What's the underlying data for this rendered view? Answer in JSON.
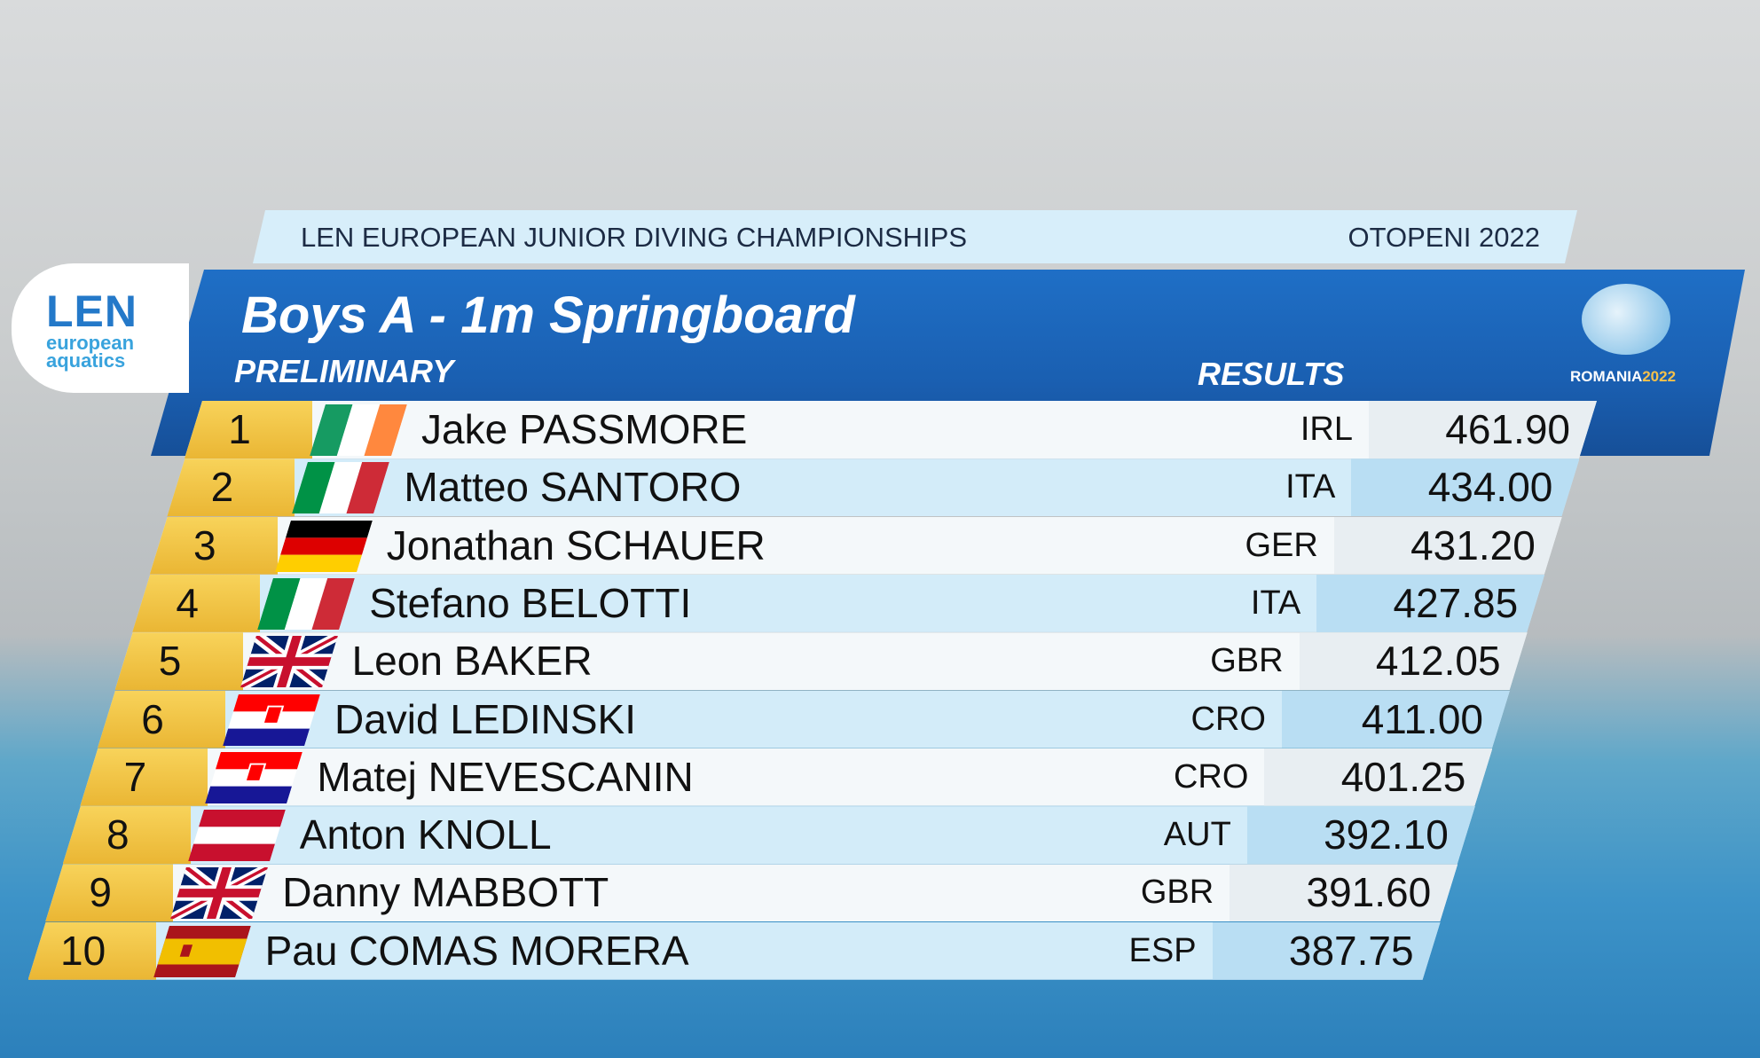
{
  "header": {
    "event": "LEN EUROPEAN JUNIOR DIVING CHAMPIONSHIPS",
    "venue": "OTOPENI 2022"
  },
  "logo_left": {
    "mark": "LEN",
    "line1": "european",
    "line2": "aquatics"
  },
  "logo_right": {
    "country": "ROMANIA",
    "year": "2022"
  },
  "title": "Boys A - 1m Springboard",
  "phase": "PRELIMINARY",
  "results_label": "RESULTS",
  "table": {
    "rows": [
      {
        "rank": 1,
        "name": "Jake PASSMORE",
        "nation": "IRL",
        "score": "461.90"
      },
      {
        "rank": 2,
        "name": "Matteo SANTORO",
        "nation": "ITA",
        "score": "434.00"
      },
      {
        "rank": 3,
        "name": "Jonathan SCHAUER",
        "nation": "GER",
        "score": "431.20"
      },
      {
        "rank": 4,
        "name": "Stefano BELOTTI",
        "nation": "ITA",
        "score": "427.85"
      },
      {
        "rank": 5,
        "name": "Leon BAKER",
        "nation": "GBR",
        "score": "412.05"
      },
      {
        "rank": 6,
        "name": "David LEDINSKI",
        "nation": "CRO",
        "score": "411.00"
      },
      {
        "rank": 7,
        "name": "Matej NEVESCANIN",
        "nation": "CRO",
        "score": "401.25"
      },
      {
        "rank": 8,
        "name": "Anton KNOLL",
        "nation": "AUT",
        "score": "392.10"
      },
      {
        "rank": 9,
        "name": "Danny MABBOTT",
        "nation": "GBR",
        "score": "391.60"
      },
      {
        "rank": 10,
        "name": "Pau COMAS MORERA",
        "nation": "ESP",
        "score": "387.75"
      }
    ]
  }
}
